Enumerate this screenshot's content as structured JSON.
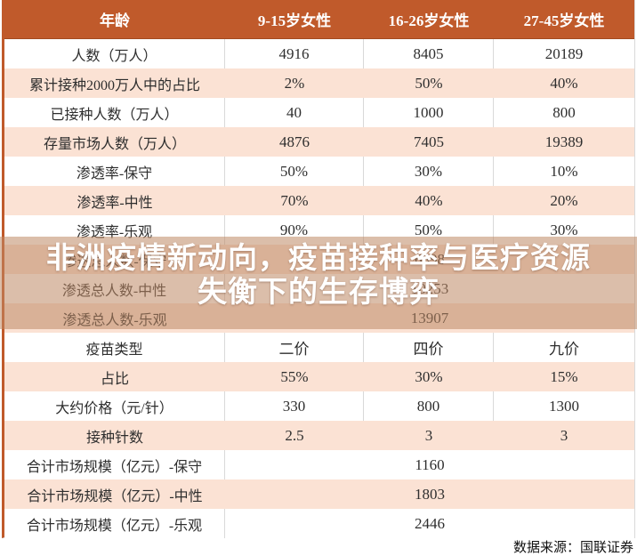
{
  "chart_data": {
    "type": "table",
    "title": "",
    "columns": [
      "年龄",
      "9-15岁女性",
      "16-26岁女性",
      "27-45岁女性"
    ],
    "rows": [
      {
        "label": "人数（万人）",
        "values": [
          "4916",
          "8405",
          "20189"
        ]
      },
      {
        "label": "累计接种2000万人中的占比",
        "values": [
          "2%",
          "50%",
          "40%"
        ]
      },
      {
        "label": "已接种人数（万人）",
        "values": [
          "40",
          "1000",
          "800"
        ]
      },
      {
        "label": "存量市场人数（万人）",
        "values": [
          "4876",
          "7405",
          "19389"
        ]
      },
      {
        "label": "渗透率-保守",
        "values": [
          "50%",
          "30%",
          "10%"
        ]
      },
      {
        "label": "渗透率-中性",
        "values": [
          "70%",
          "40%",
          "20%"
        ]
      },
      {
        "label": "渗透率-乐观",
        "values": [
          "90%",
          "50%",
          "30%"
        ]
      },
      {
        "label": "渗透总人数-保守",
        "merged": "6598"
      },
      {
        "label": "渗透总人数-中性",
        "merged": "10253"
      },
      {
        "label": "渗透总人数-乐观",
        "merged": "13907"
      },
      {
        "label": "疫苗类型",
        "values": [
          "二价",
          "四价",
          "九价"
        ]
      },
      {
        "label": "占比",
        "values": [
          "55%",
          "30%",
          "15%"
        ]
      },
      {
        "label": "大约价格（元/针）",
        "values": [
          "330",
          "800",
          "1300"
        ]
      },
      {
        "label": "接种针数",
        "values": [
          "2.5",
          "3",
          "3"
        ]
      },
      {
        "label": "合计市场规模（亿元）-保守",
        "merged": "1160"
      },
      {
        "label": "合计市场规模（亿元）-中性",
        "merged": "1803"
      },
      {
        "label": "合计市场规模（亿元）-乐观",
        "merged": "2446"
      }
    ]
  },
  "watermark": {
    "line1": "非洲疫情新动向，疫苗接种率与医疗资源",
    "line2": "失衡下的生存博弈"
  },
  "footer": {
    "source": "数据来源：国联证券"
  },
  "colors": {
    "header_bg": "#c05a2b",
    "alt_row_bg": "#fbe2d4",
    "overlay_band": "rgba(189,136,101,0.55)",
    "grid_line": "#d9d9d9",
    "accent_left_bar": "#c05a2b",
    "watermark_text": "#ffffff"
  }
}
